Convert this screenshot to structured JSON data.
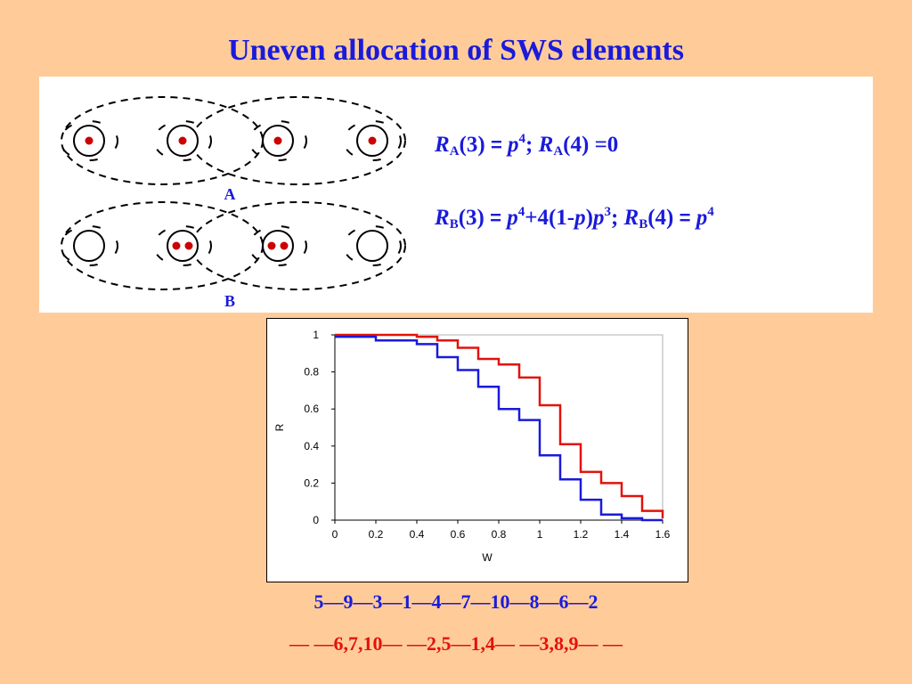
{
  "title": "Uneven allocation of SWS elements",
  "diagram": {
    "label_a": "A",
    "label_b": "B",
    "row_a_dots_per_node": [
      1,
      1,
      1,
      1
    ],
    "row_b_dots_per_node": [
      0,
      2,
      2,
      0
    ],
    "colors": {
      "dashed": "#000000",
      "dot": "#CC0000"
    }
  },
  "formulas": {
    "line1": {
      "r": "R",
      "sub_a": "A",
      "arg3": "(3)",
      "eq": "=",
      "p": "p",
      "exp4": "4",
      "semi": ";",
      "arg4": "(4)",
      "eq0": "=0"
    },
    "line2": {
      "r": "R",
      "sub_b": "B",
      "arg3": "(3)",
      "eq": "=",
      "p": "p",
      "exp4": "4",
      "plus": "+4(1-",
      "p2": "p",
      "close": ")",
      "p3": "p",
      "exp3": "3",
      "semi": ";",
      "arg4": "(4)",
      "p4": "p",
      "exp4b": "4"
    }
  },
  "chart_data": {
    "type": "line",
    "xlabel": "W",
    "ylabel": "R",
    "xlim": [
      0,
      1.6
    ],
    "ylim": [
      0,
      1
    ],
    "xticks": [
      "0",
      "0.2",
      "0.4",
      "0.6",
      "0.8",
      "1",
      "1.2",
      "1.4",
      "1.6"
    ],
    "yticks": [
      "0",
      "0.2",
      "0.4",
      "0.6",
      "0.8",
      "1"
    ],
    "grid": false,
    "series": [
      {
        "color": "#E3120B",
        "step": true,
        "x": [
          0,
          0.4,
          0.5,
          0.6,
          0.7,
          0.8,
          0.9,
          1.0,
          1.1,
          1.2,
          1.3,
          1.4,
          1.5,
          1.6
        ],
        "y": [
          1.0,
          0.99,
          0.97,
          0.93,
          0.87,
          0.84,
          0.77,
          0.62,
          0.41,
          0.26,
          0.2,
          0.13,
          0.05,
          0.01
        ]
      },
      {
        "color": "#1A1ADB",
        "step": true,
        "x": [
          0,
          0.2,
          0.4,
          0.5,
          0.6,
          0.7,
          0.8,
          0.9,
          1.0,
          1.1,
          1.2,
          1.3,
          1.4,
          1.5,
          1.6
        ],
        "y": [
          0.99,
          0.97,
          0.95,
          0.88,
          0.81,
          0.72,
          0.6,
          0.54,
          0.35,
          0.22,
          0.11,
          0.03,
          0.01,
          0.0,
          0.0
        ]
      }
    ]
  },
  "sequences": {
    "blue": "5—9—3—1—4—7—10—8—6—2",
    "red": "— —6,7,10— —2,5—1,4— —3,8,9— —"
  }
}
